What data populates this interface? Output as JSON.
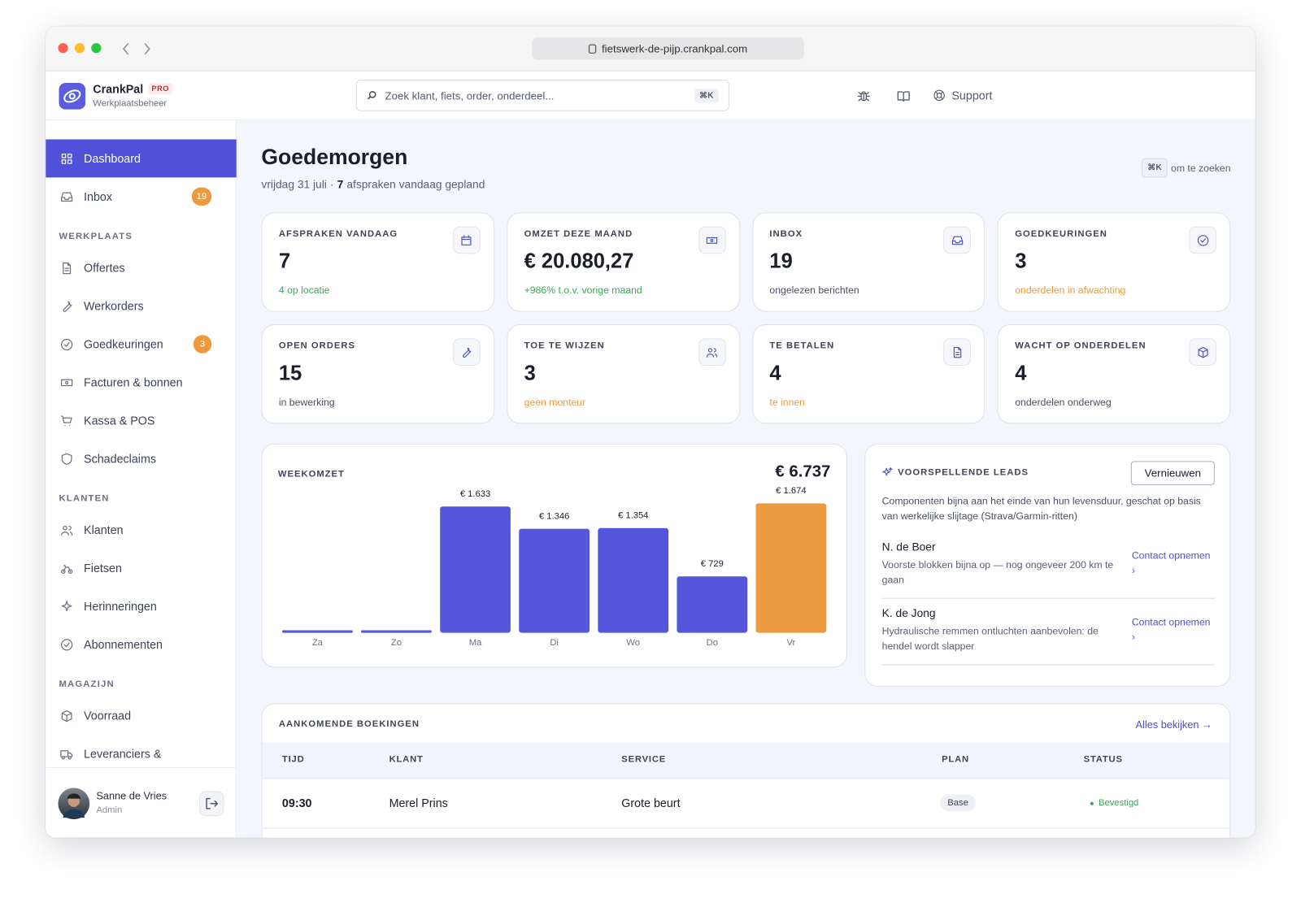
{
  "browser": {
    "url": "fietswerk-de-pijp.crankpal.com"
  },
  "brand": {
    "name": "CrankPal",
    "badge": "PRO",
    "subtitle": "Werkplaatsbeheer"
  },
  "search": {
    "placeholder": "Zoek klant, fiets, order, onderdeel...",
    "shortcut": "⌘K"
  },
  "header": {
    "support": "Support"
  },
  "sidebar": {
    "items": [
      {
        "label": "Dashboard",
        "active": true
      },
      {
        "label": "Inbox",
        "badge": 19
      }
    ],
    "sections": [
      {
        "title": "WERKPLAATS",
        "items": [
          {
            "label": "Offertes"
          },
          {
            "label": "Werkorders"
          },
          {
            "label": "Goedkeuringen",
            "badge": 3
          },
          {
            "label": "Facturen & bonnen"
          },
          {
            "label": "Kassa & POS"
          },
          {
            "label": "Schadeclaims"
          }
        ]
      },
      {
        "title": "KLANTEN",
        "items": [
          {
            "label": "Klanten"
          },
          {
            "label": "Fietsen"
          },
          {
            "label": "Herinneringen"
          },
          {
            "label": "Abonnementen"
          }
        ]
      },
      {
        "title": "MAGAZIJN",
        "items": [
          {
            "label": "Voorraad"
          },
          {
            "label": "Leveranciers &"
          }
        ]
      }
    ]
  },
  "user": {
    "name": "Sanne de Vries",
    "role": "Admin"
  },
  "greeting": {
    "title": "Goedemorgen",
    "date": "vrijdag 31 juli",
    "separator": "·",
    "appointments": 7,
    "appointments_text": "afspraken vandaag gepland",
    "hint_key": "⌘K",
    "hint_text": "om te zoeken"
  },
  "stats": [
    {
      "label": "AFSPRAKEN VANDAAG",
      "value": 7,
      "note": "4 op locatie",
      "note_color": "#3aa85a"
    },
    {
      "label": "OMZET DEZE MAAND",
      "value": "€ 20.080,27",
      "note": "+986% t.o.v. vorige maand",
      "note_color": "#3aa85a"
    },
    {
      "label": "INBOX",
      "value": 19,
      "note": "ongelezen berichten",
      "note_color": "#4a5063"
    },
    {
      "label": "GOEDKEURINGEN",
      "value": 3,
      "note": "onderdelen in afwachting",
      "note_color": "#ee9a3c"
    },
    {
      "label": "OPEN ORDERS",
      "value": 15,
      "note": "in bewerking",
      "note_color": "#4a5063"
    },
    {
      "label": "TOE TE WIJZEN",
      "value": 3,
      "note": "geen monteur",
      "note_color": "#ee9a3c"
    },
    {
      "label": "TE BETALEN",
      "value": 4,
      "note": "te innen",
      "note_color": "#ee9a3c"
    },
    {
      "label": "WACHT OP ONDERDELEN",
      "value": 4,
      "note": "onderdelen onderweg",
      "note_color": "#4a5063"
    }
  ],
  "chart_data": {
    "type": "bar",
    "title": "WEEKOMZET",
    "total": "€ 6.737",
    "categories": [
      "Za",
      "Zo",
      "Ma",
      "Di",
      "Wo",
      "Do",
      "Vr"
    ],
    "values": [
      0,
      0,
      1633,
      1346,
      1354,
      729,
      1674
    ],
    "value_labels": [
      null,
      null,
      "€ 1.633",
      "€ 1.346",
      "€ 1.354",
      "€ 729",
      "€ 1.674"
    ],
    "colors": [
      "#5457db",
      "#5457db",
      "#5457db",
      "#5457db",
      "#5457db",
      "#5457db",
      "#eb9a40"
    ]
  },
  "leads": {
    "title": "VOORSPELLENDE LEADS",
    "button": "Vernieuwen",
    "description": "Componenten bijna aan het einde van hun levensduur, geschat op basis van werkelijke slijtage (Strava/Garmin-ritten)",
    "items": [
      {
        "name": "N. de Boer",
        "text": "Voorste blokken bijna op — nog ongeveer 200 km te gaan",
        "link": "Contact opnemen ›"
      },
      {
        "name": "K. de Jong",
        "text": "Hydraulische remmen ontluchten aanbevolen: de hendel wordt slapper",
        "link": "Contact opnemen ›"
      }
    ]
  },
  "bookings": {
    "title": "AANKOMENDE BOEKINGEN",
    "link": "Alles bekijken →",
    "columns": [
      "TIJD",
      "KLANT",
      "SERVICE",
      "PLAN",
      "STATUS"
    ],
    "rows": [
      {
        "time": "09:30",
        "client": "Merel Prins",
        "service": "Grote beurt",
        "plan": "Base",
        "status": "Bevestigd"
      }
    ]
  }
}
